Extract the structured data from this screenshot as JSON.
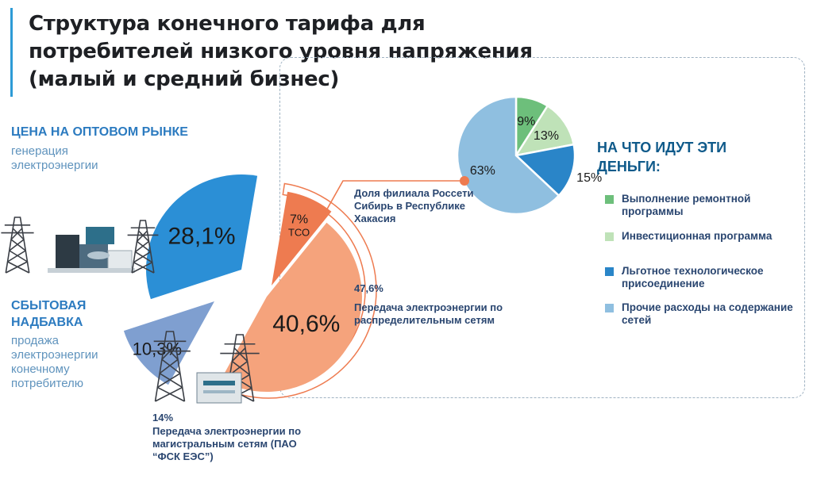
{
  "title": "Структура конечного тарифа для потребителей низкого уровня напряжения (малый и средний бизнес)",
  "labels": {
    "wholesale_head": "ЦЕНА НА ОПТОВОМ РЫНКЕ",
    "wholesale_sub": "генерация электроэнергии",
    "retail_head": "СБЫТОВАЯ НАДБАВКА",
    "retail_sub": "продажа электроэнергии конечному потребителю",
    "tso_label": "ТСО",
    "branch_note": "Доля филиала Россети Сибирь в Республике Хакасия",
    "distribution_pct": "47,6%",
    "distribution_note": "Передача электроэнергии по распределительным сетям",
    "trunk_pct": "14%",
    "trunk_note": "Передача электроэнергии по магистральным сетям (ПАО “ФСК ЕЭС”)",
    "money_title": "НА ЧТО ИДУТ ЭТИ ДЕНЬГИ:"
  },
  "chart_data": [
    {
      "type": "pie",
      "title": "Структура конечного тарифа для потребителей низкого уровня напряжения (малый и средний бизнес)",
      "slices": [
        {
          "label": "ЦЕНА НА ОПТОВОМ РЫНКЕ",
          "value": 28.1,
          "value_label": "28,1%",
          "color": "#2b8fd6"
        },
        {
          "label": "ТСО",
          "value": 7,
          "value_label": "7%",
          "color": "#ee7b50"
        },
        {
          "label": "Доля филиала Россети Сибирь в Республике Хакасия",
          "value": 40.6,
          "value_label": "40,6%",
          "color": "#f5a37c"
        },
        {
          "label": "СБЫТОВАЯ НАДБАВКА",
          "value": 10.3,
          "value_label": "10,3%",
          "color": "#7f9fd0"
        }
      ],
      "annotations": [
        "47,6%",
        "14%"
      ]
    },
    {
      "type": "pie",
      "title": "НА ЧТО ИДУТ ЭТИ ДЕНЬГИ:",
      "slices": [
        {
          "label": "Выполнение ремонтной программы",
          "value": 9,
          "value_label": "9%",
          "color": "#6dbf7b"
        },
        {
          "label": "Инвестиционная программа",
          "value": 13,
          "value_label": "13%",
          "color": "#bfe2b8"
        },
        {
          "label": "Льготное технологическое присоединение",
          "value": 15,
          "value_label": "15%",
          "color": "#2a85c8"
        },
        {
          "label": "Прочие расходы на содержание сетей",
          "value": 63,
          "value_label": "63%",
          "color": "#8fbfe0"
        }
      ],
      "legend": "right"
    }
  ]
}
